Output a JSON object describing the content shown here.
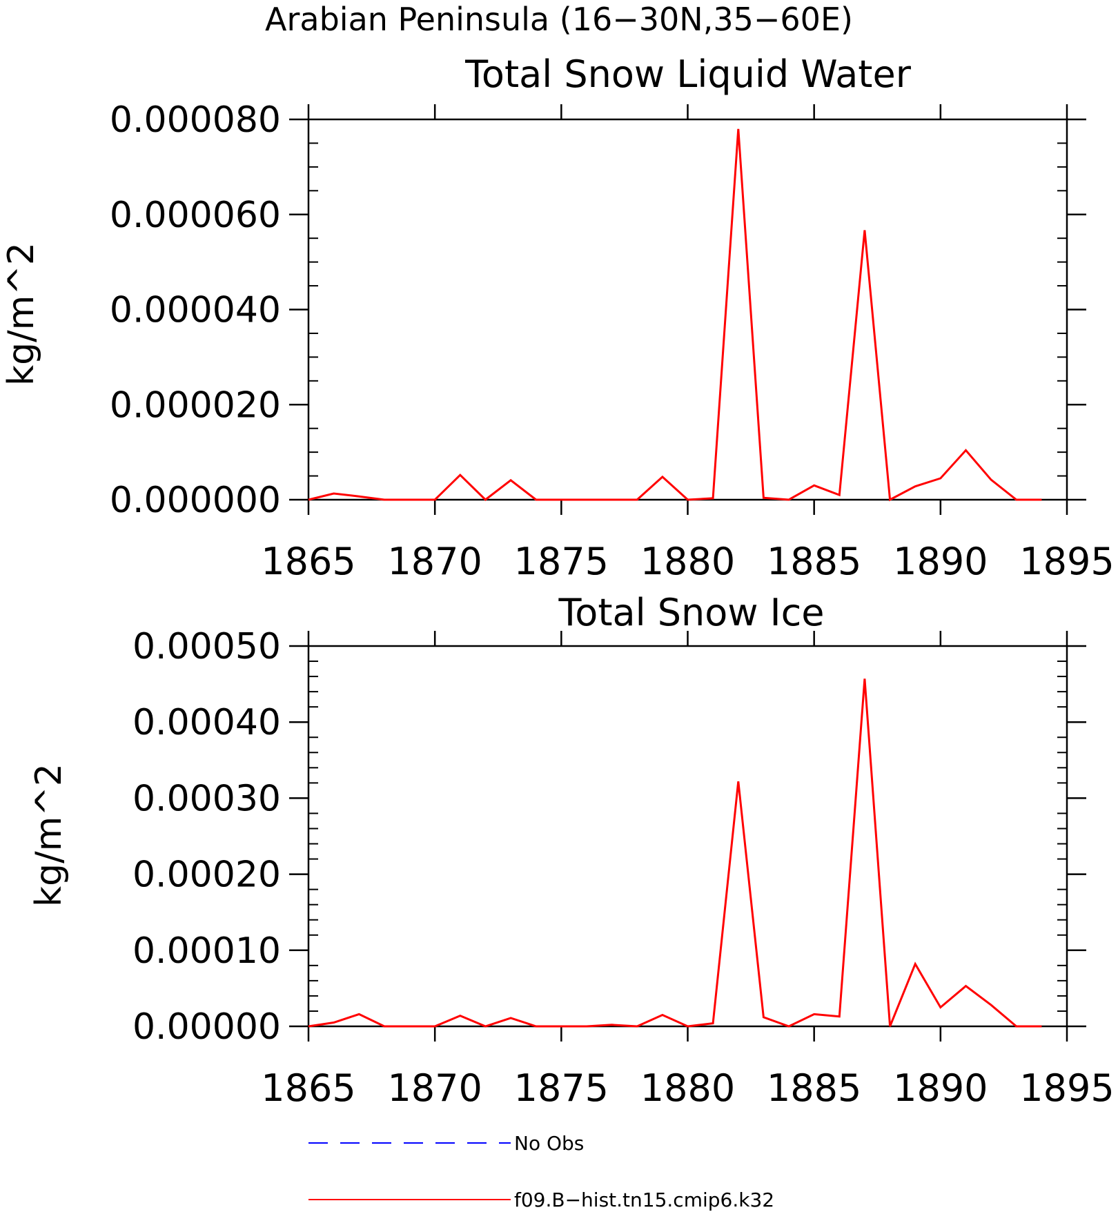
{
  "page_title": "Arabian Peninsula (16−30N,35−60E)",
  "colors": {
    "axis": "#000000",
    "series_red": "#ff0000",
    "series_blue": "#0000ff",
    "background": "#ffffff"
  },
  "chart_data": [
    {
      "type": "line",
      "title": "Total Snow Liquid Water",
      "xlabel": "",
      "ylabel": "kg/m^2",
      "xlim": [
        1865,
        1895
      ],
      "ylim": [
        0,
        8e-05
      ],
      "xticks": [
        1865,
        1870,
        1875,
        1880,
        1885,
        1890,
        1895
      ],
      "xtick_labels": [
        "1865",
        "1870",
        "1875",
        "1880",
        "1885",
        "1890",
        "1895"
      ],
      "yticks": [
        0,
        2e-05,
        4e-05,
        6e-05,
        8e-05
      ],
      "ytick_labels": [
        "0.000000",
        "0.000020",
        "0.000040",
        "0.000060",
        "0.000080"
      ],
      "grid": false,
      "x": [
        1865,
        1866,
        1867,
        1868,
        1869,
        1870,
        1871,
        1872,
        1873,
        1874,
        1875,
        1876,
        1877,
        1878,
        1879,
        1880,
        1881,
        1882,
        1883,
        1884,
        1885,
        1886,
        1887,
        1888,
        1889,
        1890,
        1891,
        1892,
        1893,
        1894
      ],
      "series": [
        {
          "name": "f09.B−hist.tn15.cmip6.k32",
          "color": "#ff0000",
          "values": [
            0.0,
            1.3e-06,
            7e-07,
            0.0,
            0.0,
            0.0,
            5.2e-06,
            0.0,
            4.1e-06,
            0.0,
            0.0,
            0.0,
            0.0,
            0.0,
            4.8e-06,
            0.0,
            3e-07,
            7.8e-05,
            4e-07,
            0.0,
            3e-06,
            1e-06,
            5.67e-05,
            0.0,
            2.8e-06,
            4.5e-06,
            1.04e-05,
            4.2e-06,
            0.0,
            0.0
          ]
        }
      ]
    },
    {
      "type": "line",
      "title": "Total Snow Ice",
      "xlabel": "",
      "ylabel": "kg/m^2",
      "xlim": [
        1865,
        1895
      ],
      "ylim": [
        0,
        0.0005
      ],
      "xticks": [
        1865,
        1870,
        1875,
        1880,
        1885,
        1890,
        1895
      ],
      "xtick_labels": [
        "1865",
        "1870",
        "1875",
        "1880",
        "1885",
        "1890",
        "1895"
      ],
      "yticks": [
        0,
        0.0001,
        0.0002,
        0.0003,
        0.0004,
        0.0005
      ],
      "ytick_labels": [
        "0.00000",
        "0.00010",
        "0.00020",
        "0.00030",
        "0.00040",
        "0.00050"
      ],
      "grid": false,
      "x": [
        1865,
        1866,
        1867,
        1868,
        1869,
        1870,
        1871,
        1872,
        1873,
        1874,
        1875,
        1876,
        1877,
        1878,
        1879,
        1880,
        1881,
        1882,
        1883,
        1884,
        1885,
        1886,
        1887,
        1888,
        1889,
        1890,
        1891,
        1892,
        1893,
        1894
      ],
      "series": [
        {
          "name": "f09.B−hist.tn15.cmip6.k32",
          "color": "#ff0000",
          "values": [
            0.0,
            5e-06,
            1.6e-05,
            0.0,
            0.0,
            0.0,
            1.4e-05,
            0.0,
            1.1e-05,
            0.0,
            0.0,
            0.0,
            2e-06,
            0.0,
            1.5e-05,
            0.0,
            4e-06,
            0.000322,
            1.2e-05,
            0.0,
            1.6e-05,
            1.3e-05,
            0.000457,
            0.0,
            8.2e-05,
            2.5e-05,
            5.3e-05,
            2.8e-05,
            0.0,
            0.0
          ]
        }
      ]
    }
  ],
  "legend": {
    "placement": "bottom-left",
    "entries": [
      {
        "label": "No Obs",
        "color": "#0000ff",
        "style": "dashed"
      },
      {
        "label": "f09.B−hist.tn15.cmip6.k32",
        "color": "#ff0000",
        "style": "solid"
      }
    ]
  }
}
